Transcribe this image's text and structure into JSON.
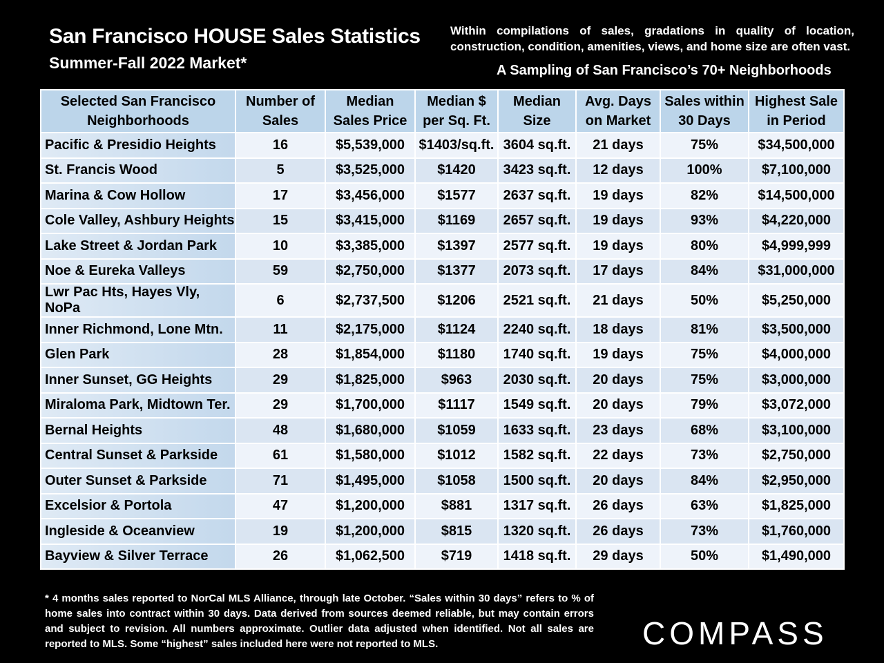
{
  "header": {
    "title": "San Francisco HOUSE Sales Statistics",
    "subtitle": "Summer-Fall 2022 Market*",
    "note_line1": "Within compilations of sales, gradations in quality of location,",
    "note_line2": "construction, condition, amenities, views, and home size are often vast.",
    "sampling": "A Sampling of San Francisco’s 70+ Neighborhoods"
  },
  "table": {
    "columns": [
      [
        "Selected San Francisco",
        "Neighborhoods"
      ],
      [
        "Number of",
        "Sales"
      ],
      [
        "Median",
        "Sales Price"
      ],
      [
        "Median $",
        "per Sq. Ft."
      ],
      [
        "Median",
        "Size"
      ],
      [
        "Avg. Days",
        "on Market"
      ],
      [
        "Sales within",
        "30 Days"
      ],
      [
        "Highest Sale",
        "in Period"
      ]
    ],
    "rows": [
      [
        "Pacific & Presidio Heights",
        "16",
        "$5,539,000",
        "$1403/sq.ft.",
        "3604 sq.ft.",
        "21 days",
        "75%",
        "$34,500,000"
      ],
      [
        "St. Francis Wood",
        "5",
        "$3,525,000",
        "$1420",
        "3423 sq.ft.",
        "12 days",
        "100%",
        "$7,100,000"
      ],
      [
        "Marina & Cow Hollow",
        "17",
        "$3,456,000",
        "$1577",
        "2637 sq.ft.",
        "19 days",
        "82%",
        "$14,500,000"
      ],
      [
        "Cole Valley, Ashbury Heights",
        "15",
        "$3,415,000",
        "$1169",
        "2657 sq.ft.",
        "19 days",
        "93%",
        "$4,220,000"
      ],
      [
        "Lake Street & Jordan Park",
        "10",
        "$3,385,000",
        "$1397",
        "2577 sq.ft.",
        "19 days",
        "80%",
        "$4,999,999"
      ],
      [
        "Noe & Eureka Valleys",
        "59",
        "$2,750,000",
        "$1377",
        "2073 sq.ft.",
        "17 days",
        "84%",
        "$31,000,000"
      ],
      [
        "Lwr Pac Hts, Hayes Vly, NoPa",
        "6",
        "$2,737,500",
        "$1206",
        "2521 sq.ft.",
        "21 days",
        "50%",
        "$5,250,000"
      ],
      [
        "Inner Richmond, Lone Mtn.",
        "11",
        "$2,175,000",
        "$1124",
        "2240 sq.ft.",
        "18 days",
        "81%",
        "$3,500,000"
      ],
      [
        "Glen Park",
        "28",
        "$1,854,000",
        "$1180",
        "1740 sq.ft.",
        "19 days",
        "75%",
        "$4,000,000"
      ],
      [
        "Inner Sunset, GG Heights",
        "29",
        "$1,825,000",
        "$963",
        "2030 sq.ft.",
        "20 days",
        "75%",
        "$3,000,000"
      ],
      [
        "Miraloma Park, Midtown Ter.",
        "29",
        "$1,700,000",
        "$1117",
        "1549 sq.ft.",
        "20 days",
        "79%",
        "$3,072,000"
      ],
      [
        "Bernal Heights",
        "48",
        "$1,680,000",
        "$1059",
        "1633 sq.ft.",
        "23 days",
        "68%",
        "$3,100,000"
      ],
      [
        "Central Sunset & Parkside",
        "61",
        "$1,580,000",
        "$1012",
        "1582 sq.ft.",
        "22 days",
        "73%",
        "$2,750,000"
      ],
      [
        "Outer Sunset & Parkside",
        "71",
        "$1,495,000",
        "$1058",
        "1500 sq.ft.",
        "20 days",
        "84%",
        "$2,950,000"
      ],
      [
        "Excelsior & Portola",
        "47",
        "$1,200,000",
        "$881",
        "1317 sq.ft.",
        "26 days",
        "63%",
        "$1,825,000"
      ],
      [
        "Ingleside & Oceanview",
        "19",
        "$1,200,000",
        "$815",
        "1320 sq.ft.",
        "26 days",
        "73%",
        "$1,760,000"
      ],
      [
        "Bayview & Silver Terrace",
        "26",
        "$1,062,500",
        "$719",
        "1418 sq.ft.",
        "29 days",
        "50%",
        "$1,490,000"
      ]
    ]
  },
  "footnote": "* 4 months sales reported to NorCal MLS Alliance, through late October. “Sales within 30 days” refers to % of home sales into contract within 30 days. Data derived from sources deemed reliable, but may contain errors and subject to revision. All numbers approximate. Outlier data adjusted when identified. Not all sales are reported to MLS. Some “highest” sales included here were not reported to MLS.",
  "logo": "COMPASS",
  "colors": {
    "background": "#000000",
    "header_cell": "#bcd5ea",
    "row_light": "#eef3fa",
    "row_dark": "#dae5f2"
  }
}
